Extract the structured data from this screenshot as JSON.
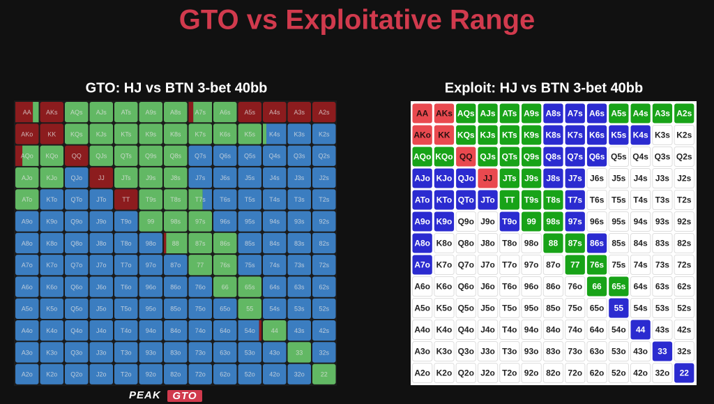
{
  "title": "GTO vs Exploitative Range",
  "hands": [
    [
      "AA",
      "AKs",
      "AQs",
      "AJs",
      "ATs",
      "A9s",
      "A8s",
      "A7s",
      "A6s",
      "A5s",
      "A4s",
      "A3s",
      "A2s"
    ],
    [
      "AKo",
      "KK",
      "KQs",
      "KJs",
      "KTs",
      "K9s",
      "K8s",
      "K7s",
      "K6s",
      "K5s",
      "K4s",
      "K3s",
      "K2s"
    ],
    [
      "AQo",
      "KQo",
      "QQ",
      "QJs",
      "QTs",
      "Q9s",
      "Q8s",
      "Q7s",
      "Q6s",
      "Q5s",
      "Q4s",
      "Q3s",
      "Q2s"
    ],
    [
      "AJo",
      "KJo",
      "QJo",
      "JJ",
      "JTs",
      "J9s",
      "J8s",
      "J7s",
      "J6s",
      "J5s",
      "J4s",
      "J3s",
      "J2s"
    ],
    [
      "ATo",
      "KTo",
      "QTo",
      "JTo",
      "TT",
      "T9s",
      "T8s",
      "T7s",
      "T6s",
      "T5s",
      "T4s",
      "T3s",
      "T2s"
    ],
    [
      "A9o",
      "K9o",
      "Q9o",
      "J9o",
      "T9o",
      "99",
      "98s",
      "97s",
      "96s",
      "95s",
      "94s",
      "93s",
      "92s"
    ],
    [
      "A8o",
      "K8o",
      "Q8o",
      "J8o",
      "T8o",
      "98o",
      "88",
      "87s",
      "86s",
      "85s",
      "84s",
      "83s",
      "82s"
    ],
    [
      "A7o",
      "K7o",
      "Q7o",
      "J7o",
      "T7o",
      "97o",
      "87o",
      "77",
      "76s",
      "75s",
      "74s",
      "73s",
      "72s"
    ],
    [
      "A6o",
      "K6o",
      "Q6o",
      "J6o",
      "T6o",
      "96o",
      "86o",
      "76o",
      "66",
      "65s",
      "64s",
      "63s",
      "62s"
    ],
    [
      "A5o",
      "K5o",
      "Q5o",
      "J5o",
      "T5o",
      "95o",
      "85o",
      "75o",
      "65o",
      "55",
      "54s",
      "53s",
      "52s"
    ],
    [
      "A4o",
      "K4o",
      "Q4o",
      "J4o",
      "T4o",
      "94o",
      "84o",
      "74o",
      "64o",
      "54o",
      "44",
      "43s",
      "42s"
    ],
    [
      "A3o",
      "K3o",
      "Q3o",
      "J3o",
      "T3o",
      "93o",
      "83o",
      "73o",
      "63o",
      "53o",
      "43o",
      "33",
      "32s"
    ],
    [
      "A2o",
      "K2o",
      "Q2o",
      "J2o",
      "T2o",
      "92o",
      "82o",
      "72o",
      "62o",
      "52o",
      "42o",
      "32o",
      "22"
    ]
  ],
  "gto": {
    "title": "GTO: HJ vs BTN 3-bet 40bb",
    "palette": {
      "r": "#8c1c1e",
      "g": "#62b864",
      "b": "#3b7dc0"
    },
    "cells": [
      [
        [
          [
            "r",
            0.75
          ],
          [
            "g",
            0.25
          ]
        ],
        "r",
        "g",
        "g",
        "g",
        "g",
        "g",
        [
          [
            "r",
            0.2
          ],
          [
            "g",
            0.8
          ]
        ],
        "g",
        "r",
        "r",
        "r",
        "r"
      ],
      [
        "r",
        "r",
        "g",
        "g",
        "g",
        "g",
        "g",
        "g",
        "g",
        "g",
        [
          [
            "g",
            0.15
          ],
          [
            "b",
            0.85
          ]
        ],
        "b",
        "b"
      ],
      [
        [
          [
            "r",
            0.3
          ],
          [
            "g",
            0.7
          ]
        ],
        "g",
        "r",
        "g",
        "g",
        "g",
        "g",
        "b",
        "b",
        "b",
        "b",
        "b",
        "b"
      ],
      [
        "g",
        "g",
        "b",
        "r",
        "g",
        "g",
        "g",
        "b",
        "b",
        "b",
        "b",
        "b",
        "b"
      ],
      [
        "g",
        "b",
        "b",
        "b",
        "r",
        "g",
        "g",
        [
          [
            "g",
            0.6
          ],
          [
            "b",
            0.4
          ]
        ],
        "b",
        "b",
        "b",
        "b",
        "b"
      ],
      [
        "b",
        "b",
        "b",
        "b",
        "b",
        "g",
        "g",
        "g",
        "b",
        "b",
        "b",
        "b",
        "b"
      ],
      [
        "b",
        "b",
        "b",
        "b",
        "b",
        "b",
        [
          [
            "r",
            0.1
          ],
          [
            "g",
            0.9
          ]
        ],
        "g",
        "g",
        "b",
        "b",
        "b",
        "b"
      ],
      [
        "b",
        "b",
        "b",
        "b",
        "b",
        "b",
        "b",
        "g",
        "g",
        "b",
        "b",
        "b",
        "b"
      ],
      [
        "b",
        "b",
        "b",
        "b",
        "b",
        "b",
        "b",
        "b",
        "g",
        "g",
        "b",
        "b",
        "b"
      ],
      [
        "b",
        "b",
        "b",
        "b",
        "b",
        "b",
        "b",
        "b",
        "b",
        "g",
        "b",
        "b",
        "b"
      ],
      [
        "b",
        "b",
        "b",
        "b",
        "b",
        "b",
        "b",
        "b",
        "b",
        [
          [
            "b",
            0.9
          ],
          [
            "r",
            0.1
          ]
        ],
        "g",
        "b",
        "b"
      ],
      [
        "b",
        "b",
        "b",
        "b",
        "b",
        "b",
        "b",
        "b",
        "b",
        "b",
        "b",
        "g",
        "b"
      ],
      [
        "b",
        "b",
        "b",
        "b",
        "b",
        "b",
        "b",
        "b",
        "b",
        "b",
        "b",
        "b",
        "g"
      ]
    ]
  },
  "exploit": {
    "title": "Exploit: HJ vs BTN 3-bet 40bb",
    "palette": {
      "r": "#e9494f",
      "g": "#18a318",
      "b": "#2b2bd0",
      "w": "#ffffff"
    },
    "text_palette": {
      "r": "#2a1010",
      "g": "#ffffff",
      "b": "#ffffff",
      "w": "#222222"
    },
    "rows": [
      "rrggggbbbgggg",
      "rrggggbbbbbww",
      "ggrgggbbbwwww",
      "bbbrggbbwwwww",
      "bbbbgggbwwwww",
      "bbwwbggbwwwww",
      "bwwwwwggbwwww",
      "bwwwwwwggwwww",
      "wwwwwwwwggwww",
      "wwwwwwwwwbwww",
      "wwwwwwwwwwbww",
      "wwwwwwwwwwwbw",
      "wwwwwwwwwwwwb"
    ]
  },
  "logo": {
    "brand": "PEAK",
    "mark": "GTO"
  }
}
